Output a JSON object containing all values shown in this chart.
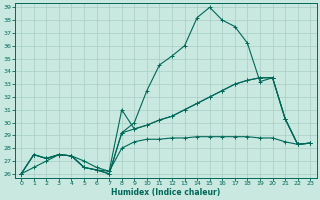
{
  "xlabel": "Humidex (Indice chaleur)",
  "bg_color": "#c8e8e0",
  "grid_color": "#a8ccc4",
  "line_color": "#006858",
  "xlim": [
    -0.5,
    23.5
  ],
  "ylim": [
    25.7,
    39.3
  ],
  "xticks": [
    0,
    1,
    2,
    3,
    4,
    5,
    6,
    7,
    8,
    9,
    10,
    11,
    12,
    13,
    14,
    15,
    16,
    17,
    18,
    19,
    20,
    21,
    22,
    23
  ],
  "yticks": [
    26,
    27,
    28,
    29,
    30,
    31,
    32,
    33,
    34,
    35,
    36,
    37,
    38,
    39
  ],
  "series": [
    [
      26.0,
      27.5,
      27.2,
      27.5,
      27.4,
      26.5,
      26.3,
      26.0,
      29.2,
      30.0,
      32.5,
      34.5,
      35.2,
      36.0,
      38.2,
      39.0,
      38.0,
      37.5,
      36.2,
      33.2,
      33.5,
      30.3,
      28.3,
      28.4
    ],
    [
      26.0,
      27.5,
      27.2,
      27.5,
      27.4,
      26.5,
      26.3,
      26.0,
      29.2,
      29.5,
      29.8,
      30.2,
      30.5,
      31.0,
      31.5,
      32.0,
      32.5,
      33.0,
      33.3,
      33.5,
      33.5,
      30.3,
      28.3,
      28.4
    ],
    [
      26.0,
      27.5,
      27.2,
      27.5,
      27.4,
      26.5,
      26.3,
      26.2,
      31.0,
      29.5,
      29.8,
      30.2,
      30.5,
      31.0,
      31.5,
      32.0,
      32.5,
      33.0,
      33.3,
      33.5,
      33.5,
      30.3,
      28.3,
      28.4
    ],
    [
      26.0,
      26.5,
      27.0,
      27.5,
      27.4,
      27.0,
      26.5,
      26.2,
      28.0,
      28.5,
      28.7,
      28.7,
      28.8,
      28.8,
      28.9,
      28.9,
      28.9,
      28.9,
      28.9,
      28.8,
      28.8,
      28.5,
      28.3,
      28.4
    ]
  ]
}
